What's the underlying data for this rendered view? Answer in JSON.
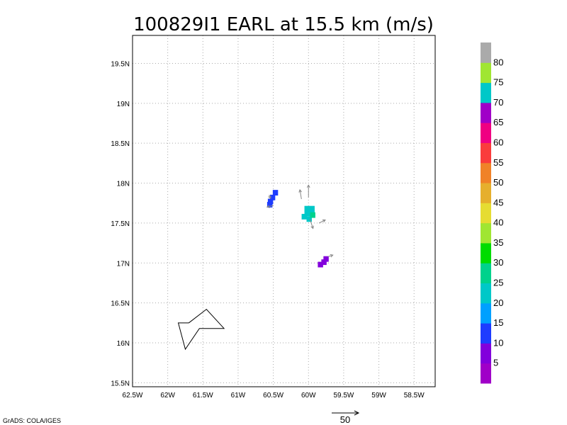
{
  "chart_data": {
    "type": "heatmap",
    "title": "100829I1 EARL at 15.5 km (m/s)",
    "xlabel": "",
    "ylabel": "",
    "xlim": [
      -62.5,
      -58.2
    ],
    "ylim": [
      15.45,
      19.85
    ],
    "grid": true,
    "x_ticks": [
      {
        "value": -62.5,
        "label": "62.5W"
      },
      {
        "value": -62.0,
        "label": "62W"
      },
      {
        "value": -61.5,
        "label": "61.5W"
      },
      {
        "value": -61.0,
        "label": "61W"
      },
      {
        "value": -60.5,
        "label": "60.5W"
      },
      {
        "value": -60.0,
        "label": "60W"
      },
      {
        "value": -59.5,
        "label": "59.5W"
      },
      {
        "value": -59.0,
        "label": "59W"
      },
      {
        "value": -58.5,
        "label": "58.5W"
      }
    ],
    "y_ticks": [
      {
        "value": 15.5,
        "label": "15.5N"
      },
      {
        "value": 16.0,
        "label": "16N"
      },
      {
        "value": 16.5,
        "label": "16.5N"
      },
      {
        "value": 17.0,
        "label": "17N"
      },
      {
        "value": 17.5,
        "label": "17.5N"
      },
      {
        "value": 18.0,
        "label": "18N"
      },
      {
        "value": 18.5,
        "label": "18.5N"
      },
      {
        "value": 19.0,
        "label": "19N"
      },
      {
        "value": 19.5,
        "label": "19.5N"
      }
    ],
    "colorbar": {
      "colors": [
        "#a000c8",
        "#8200dc",
        "#1e3cff",
        "#00a0ff",
        "#00c8c8",
        "#00d28c",
        "#00dc00",
        "#a0e632",
        "#e6dc32",
        "#e6af2d",
        "#f08228",
        "#fa3c3c",
        "#f00082",
        "#a000c8",
        "#00c8c8",
        "#a0e632",
        "#aaaaaa"
      ],
      "labels": [
        "5",
        "10",
        "15",
        "20",
        "25",
        "30",
        "35",
        "40",
        "45",
        "50",
        "55",
        "60",
        "65",
        "70",
        "75",
        "80"
      ]
    },
    "cells": [
      {
        "lon": -60.47,
        "lat": 17.88,
        "value": 14
      },
      {
        "lon": -60.51,
        "lat": 17.82,
        "value": 14
      },
      {
        "lon": -60.54,
        "lat": 17.77,
        "value": 14
      },
      {
        "lon": -60.55,
        "lat": 17.73,
        "value": 14
      },
      {
        "lon": -60.02,
        "lat": 17.68,
        "value": 24
      },
      {
        "lon": -59.95,
        "lat": 17.68,
        "value": 24
      },
      {
        "lon": -60.02,
        "lat": 17.62,
        "value": 24
      },
      {
        "lon": -59.95,
        "lat": 17.62,
        "value": 24
      },
      {
        "lon": -60.06,
        "lat": 17.58,
        "value": 24
      },
      {
        "lon": -59.99,
        "lat": 17.55,
        "value": 24
      },
      {
        "lon": -59.94,
        "lat": 17.6,
        "value": 29
      },
      {
        "lon": -59.75,
        "lat": 17.05,
        "value": 8
      },
      {
        "lon": -59.78,
        "lat": 17.01,
        "value": 8
      },
      {
        "lon": -59.83,
        "lat": 16.98,
        "value": 8
      }
    ],
    "vectors": [
      {
        "lon": -60.56,
        "lat": 17.85,
        "u": 1,
        "v": -2
      },
      {
        "lon": -60.5,
        "lat": 17.72,
        "u": -4,
        "v": -1
      },
      {
        "lon": -60.1,
        "lat": 17.8,
        "u": -1,
        "v": 6
      },
      {
        "lon": -60.0,
        "lat": 17.82,
        "u": 0,
        "v": 8
      },
      {
        "lon": -59.98,
        "lat": 17.55,
        "u": 2,
        "v": -6
      },
      {
        "lon": -59.85,
        "lat": 17.5,
        "u": 4,
        "v": 2
      },
      {
        "lon": -59.72,
        "lat": 17.08,
        "u": 3,
        "v": 1
      }
    ],
    "track": [
      {
        "lon": -61.7,
        "lat": 16.25
      },
      {
        "lon": -61.45,
        "lat": 16.42
      },
      {
        "lon": -61.2,
        "lat": 16.18
      },
      {
        "lon": -61.55,
        "lat": 16.18
      },
      {
        "lon": -61.75,
        "lat": 15.92
      },
      {
        "lon": -61.85,
        "lat": 16.25
      },
      {
        "lon": -61.7,
        "lat": 16.25
      }
    ],
    "reference_vector": {
      "label": "50"
    },
    "credit": "GrADS: COLA/IGES"
  }
}
